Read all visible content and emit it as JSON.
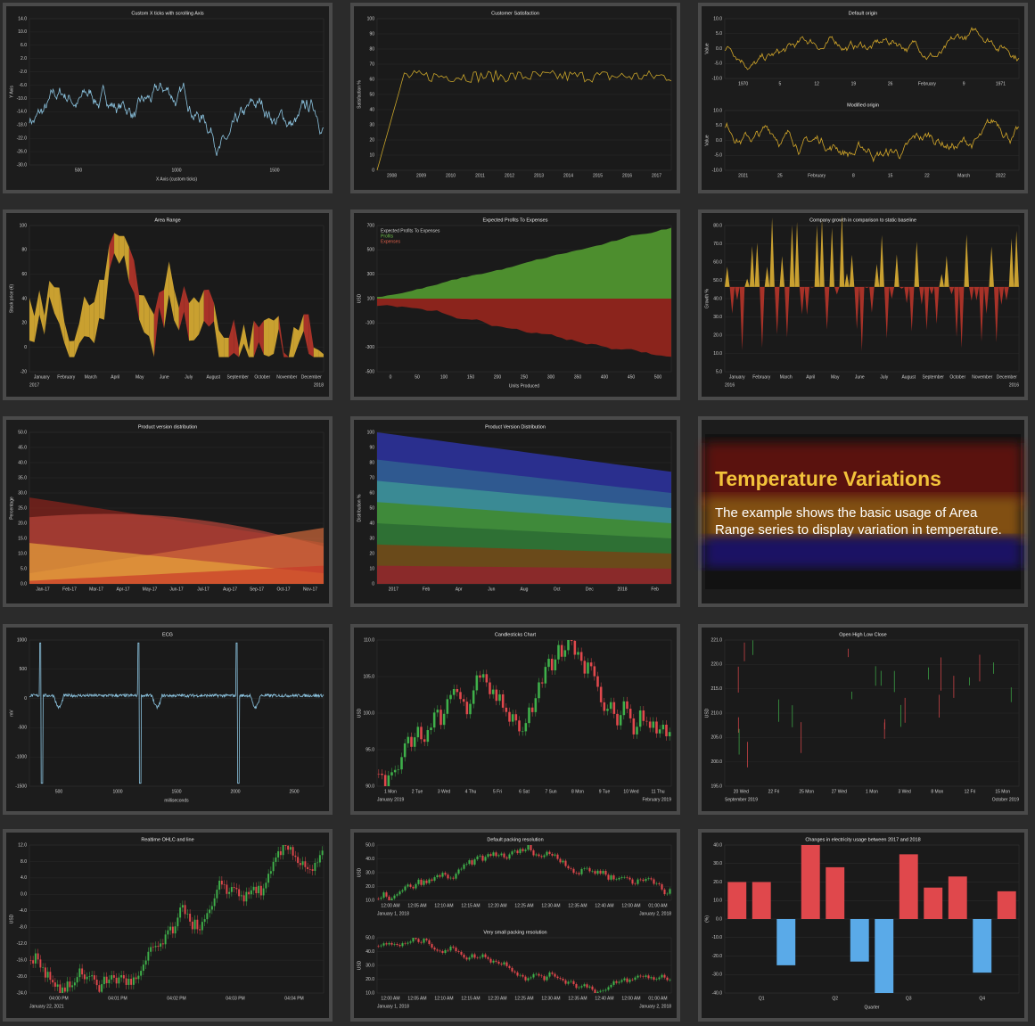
{
  "tiles": [
    {
      "charts": [
        {
          "title": "Custom X ticks with scrolling Axis",
          "y_axis": "Y Axis",
          "x_axis": "X Axis (custom ticks)",
          "yticks": [
            "14.0",
            "10.0",
            "6.0",
            "2.0",
            "-2.0",
            "-6.0",
            "-10.0",
            "-14.0",
            "-18.0",
            "-22.0",
            "-26.0",
            "-30.0"
          ],
          "xticks": [
            "500",
            "1000",
            "1500"
          ]
        }
      ]
    },
    {
      "charts": [
        {
          "title": "Customer Satisfaction",
          "y_axis": "Satisfaction %",
          "yticks": [
            "100",
            "90",
            "80",
            "70",
            "60",
            "50",
            "40",
            "30",
            "20",
            "10",
            "0"
          ],
          "xticks": [
            "2008",
            "2009",
            "2010",
            "2011",
            "2012",
            "2013",
            "2014",
            "2015",
            "2016",
            "2017"
          ]
        }
      ]
    },
    {
      "charts": [
        {
          "title": "Default origin",
          "y_axis": "Value",
          "yticks": [
            "10.0",
            "5.0",
            "0.0",
            "-5.0",
            "-10.0"
          ],
          "xticks": [
            "1970",
            "5",
            "12",
            "19",
            "26",
            "February",
            "9",
            "1971"
          ]
        },
        {
          "title": "Modified origin",
          "y_axis": "Value",
          "yticks": [
            "10.0",
            "5.0",
            "0.0",
            "-5.0",
            "-10.0"
          ],
          "xticks": [
            "2021",
            "25",
            "February",
            "8",
            "15",
            "22",
            "March",
            "2022"
          ]
        }
      ]
    },
    {
      "charts": [
        {
          "title": "Area Range",
          "y_axis": "Stock price (€)",
          "yticks": [
            "100",
            "80",
            "60",
            "40",
            "20",
            "0",
            "-20"
          ],
          "xticks": [
            "January",
            "February",
            "March",
            "April",
            "May",
            "June",
            "July",
            "August",
            "September",
            "October",
            "November",
            "December"
          ],
          "x_edges": [
            "2017",
            "2018"
          ]
        }
      ]
    },
    {
      "charts": [
        {
          "title": "Expected Profits To Expenses",
          "legend": [
            "Expected Profits To Expenses",
            "Profits",
            "Expenses"
          ],
          "y_axis": "USD",
          "x_axis": "Units Produced",
          "yticks": [
            "700",
            "500",
            "300",
            "100",
            "-100",
            "-300",
            "-500"
          ],
          "xticks": [
            "0",
            "50",
            "100",
            "150",
            "200",
            "250",
            "300",
            "350",
            "400",
            "450",
            "500"
          ]
        }
      ]
    },
    {
      "charts": [
        {
          "title": "Company growth in comparison to static baseline",
          "y_axis": "Growth %",
          "yticks": [
            "80.0",
            "70.0",
            "60.0",
            "50.0",
            "40.0",
            "30.0",
            "20.0",
            "10.0",
            "5.0"
          ],
          "xticks": [
            "January",
            "February",
            "March",
            "April",
            "May",
            "June",
            "July",
            "August",
            "September",
            "October",
            "November",
            "December"
          ],
          "x_edges": [
            "2016",
            "2016"
          ]
        }
      ]
    },
    {
      "charts": [
        {
          "title": "Product version distribution",
          "y_axis": "Percentage",
          "yticks": [
            "50.0",
            "45.0",
            "40.0",
            "35.0",
            "30.0",
            "25.0",
            "20.0",
            "15.0",
            "10.0",
            "5.0",
            "0.0"
          ],
          "xticks": [
            "Jan-17",
            "Feb-17",
            "Mar-17",
            "Apr-17",
            "May-17",
            "Jun-17",
            "Jul-17",
            "Aug-17",
            "Sep-17",
            "Oct-17",
            "Nov-17"
          ]
        }
      ]
    },
    {
      "charts": [
        {
          "title": "Product Version Distribution",
          "y_axis": "Distribution %",
          "yticks": [
            "100",
            "90",
            "80",
            "70",
            "60",
            "50",
            "40",
            "30",
            "20",
            "10",
            "0"
          ],
          "xticks": [
            "2017",
            "Feb",
            "Apr",
            "Jun",
            "Aug",
            "Oct",
            "Dec",
            "2018",
            "Feb"
          ]
        }
      ]
    },
    {
      "heading": "Temperature Variations",
      "description": "The example shows the basic usage of Area Range series to display variation in temperature."
    },
    {
      "charts": [
        {
          "title": "ECG",
          "y_axis": "mV",
          "x_axis": "milliseconds",
          "yticks": [
            "1000",
            "500",
            "0",
            "-500",
            "-1000",
            "-1500"
          ],
          "xticks": [
            "500",
            "1000",
            "1500",
            "2000",
            "2500"
          ]
        }
      ]
    },
    {
      "charts": [
        {
          "title": "Candlesticks Chart",
          "y_axis": "USD",
          "yticks": [
            "110.0",
            "105.0",
            "100.0",
            "95.0",
            "90.0"
          ],
          "xticks": [
            "1 Mon",
            "2 Tue",
            "3 Wed",
            "4 Thu",
            "5 Fri",
            "6 Sat",
            "7 Sun",
            "8 Mon",
            "9 Tue",
            "10 Wed",
            "11 Thu"
          ],
          "x_edges": [
            "January 2019",
            "February 2019"
          ]
        }
      ]
    },
    {
      "charts": [
        {
          "title": "Open High Low Close",
          "y_axis": "USD",
          "yticks": [
            "221.0",
            "220.0",
            "215.0",
            "210.0",
            "205.0",
            "200.0",
            "195.0"
          ],
          "xticks": [
            "20 Wed",
            "22 Fri",
            "25 Mon",
            "27 Wed",
            "1 Mon",
            "3 Wed",
            "8 Mon",
            "12 Fri",
            "15 Mon"
          ],
          "x_edges": [
            "September 2019",
            "October 2019"
          ]
        }
      ]
    },
    {
      "charts": [
        {
          "title": "Realtime OHLC and line",
          "y_axis": "USD",
          "yticks": [
            "12.0",
            "8.0",
            "4.0",
            "0.0",
            "-4.0",
            "-8.0",
            "-12.0",
            "-16.0",
            "-20.0",
            "-24.0"
          ],
          "xticks": [
            "04:00 PM",
            "04:01 PM",
            "04:02 PM",
            "04:03 PM",
            "04:04 PM"
          ],
          "x_edges": [
            "January 22, 2021",
            ""
          ]
        }
      ]
    },
    {
      "charts": [
        {
          "title": "Default packing resolution",
          "y_axis": "USD",
          "yticks": [
            "50.0",
            "40.0",
            "30.0",
            "20.0",
            "10.0"
          ],
          "xticks": [
            "12:00 AM",
            "12:05 AM",
            "12:10 AM",
            "12:15 AM",
            "12:20 AM",
            "12:25 AM",
            "12:30 AM",
            "12:35 AM",
            "12:40 AM",
            "12:00 AM",
            "01:00 AM"
          ],
          "x_edges": [
            "January 1, 2018",
            "January 2, 2018"
          ]
        },
        {
          "title": "Very small packing resolution",
          "y_axis": "USD",
          "yticks": [
            "50.0",
            "40.0",
            "30.0",
            "20.0",
            "10.0"
          ],
          "xticks": [
            "12:00 AM",
            "12:05 AM",
            "12:10 AM",
            "12:15 AM",
            "12:20 AM",
            "12:25 AM",
            "12:30 AM",
            "12:35 AM",
            "12:40 AM",
            "12:00 AM",
            "01:00 AM"
          ],
          "x_edges": [
            "January 1, 2018",
            "January 2, 2018"
          ]
        }
      ]
    },
    {
      "charts": [
        {
          "title": "Changes in electricity usage between 2017 and 2018",
          "y_axis": "(%)",
          "x_axis": "Quarter",
          "xticks": [
            "Q1",
            "Q2",
            "Q3",
            "Q4"
          ],
          "ylim": [
            -40,
            40
          ],
          "bar_ticks": [
            {
              "value": 40,
              "label": "40.0"
            },
            {
              "value": 30,
              "label": "30.0"
            },
            {
              "value": 20,
              "label": "20.0"
            },
            {
              "value": 10,
              "label": "10.0"
            },
            {
              "value": 0,
              "label": "0.0"
            },
            {
              "value": -10,
              "label": "-10.0"
            },
            {
              "value": -20,
              "label": "-20.0"
            },
            {
              "value": -30,
              "label": "-30.0"
            },
            {
              "value": -40,
              "label": "-40.0"
            }
          ],
          "values": [
            20,
            20,
            -25,
            40,
            28,
            -23,
            -40,
            35,
            17,
            23,
            -29,
            15
          ],
          "positive_color": "#e0484c",
          "negative_color": "#5aaae8"
        }
      ]
    }
  ]
}
